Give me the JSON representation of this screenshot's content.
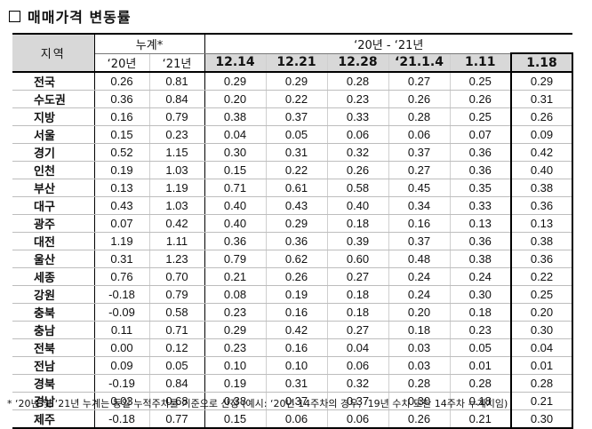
{
  "title": "매매가격 변동률",
  "header": {
    "region": "지역",
    "cumulative_group": "누계*",
    "period_group": "‘20년 - ‘21년",
    "cumulative_cols": [
      "‘20년",
      "‘21년"
    ],
    "week_cols": [
      "12.14",
      "12.21",
      "12.28",
      "‘21.1.4",
      "1.11",
      "1.18"
    ]
  },
  "rows": [
    {
      "region": "전국",
      "c20": "0.26",
      "c21": "0.81",
      "w": [
        "0.29",
        "0.29",
        "0.28",
        "0.27",
        "0.25",
        "0.29"
      ]
    },
    {
      "region": "수도권",
      "c20": "0.36",
      "c21": "0.84",
      "w": [
        "0.20",
        "0.22",
        "0.23",
        "0.26",
        "0.26",
        "0.31"
      ]
    },
    {
      "region": "지방",
      "c20": "0.16",
      "c21": "0.79",
      "w": [
        "0.38",
        "0.37",
        "0.33",
        "0.28",
        "0.25",
        "0.26"
      ]
    },
    {
      "region": "서울",
      "c20": "0.15",
      "c21": "0.23",
      "w": [
        "0.04",
        "0.05",
        "0.06",
        "0.06",
        "0.07",
        "0.09"
      ]
    },
    {
      "region": "경기",
      "c20": "0.52",
      "c21": "1.15",
      "w": [
        "0.30",
        "0.31",
        "0.32",
        "0.37",
        "0.36",
        "0.42"
      ]
    },
    {
      "region": "인천",
      "c20": "0.19",
      "c21": "1.03",
      "w": [
        "0.15",
        "0.22",
        "0.26",
        "0.27",
        "0.36",
        "0.40"
      ]
    },
    {
      "region": "부산",
      "c20": "0.13",
      "c21": "1.19",
      "w": [
        "0.71",
        "0.61",
        "0.58",
        "0.45",
        "0.35",
        "0.38"
      ]
    },
    {
      "region": "대구",
      "c20": "0.43",
      "c21": "1.03",
      "w": [
        "0.40",
        "0.43",
        "0.40",
        "0.34",
        "0.33",
        "0.36"
      ]
    },
    {
      "region": "광주",
      "c20": "0.07",
      "c21": "0.42",
      "w": [
        "0.40",
        "0.29",
        "0.18",
        "0.16",
        "0.13",
        "0.13"
      ]
    },
    {
      "region": "대전",
      "c20": "1.19",
      "c21": "1.11",
      "w": [
        "0.36",
        "0.36",
        "0.39",
        "0.37",
        "0.36",
        "0.38"
      ]
    },
    {
      "region": "울산",
      "c20": "0.31",
      "c21": "1.23",
      "w": [
        "0.79",
        "0.62",
        "0.60",
        "0.48",
        "0.38",
        "0.36"
      ]
    },
    {
      "region": "세종",
      "c20": "0.76",
      "c21": "0.70",
      "w": [
        "0.21",
        "0.26",
        "0.27",
        "0.24",
        "0.24",
        "0.22"
      ]
    },
    {
      "region": "강원",
      "c20": "-0.18",
      "c21": "0.79",
      "w": [
        "0.08",
        "0.19",
        "0.18",
        "0.24",
        "0.30",
        "0.25"
      ]
    },
    {
      "region": "충북",
      "c20": "-0.09",
      "c21": "0.58",
      "w": [
        "0.23",
        "0.16",
        "0.18",
        "0.20",
        "0.18",
        "0.20"
      ]
    },
    {
      "region": "충남",
      "c20": "0.11",
      "c21": "0.71",
      "w": [
        "0.29",
        "0.42",
        "0.27",
        "0.18",
        "0.23",
        "0.30"
      ]
    },
    {
      "region": "전북",
      "c20": "0.00",
      "c21": "0.12",
      "w": [
        "0.23",
        "0.16",
        "0.04",
        "0.03",
        "0.05",
        "0.04"
      ]
    },
    {
      "region": "전남",
      "c20": "0.09",
      "c21": "0.05",
      "w": [
        "0.10",
        "0.10",
        "0.06",
        "0.03",
        "0.01",
        "0.01"
      ]
    },
    {
      "region": "경북",
      "c20": "-0.19",
      "c21": "0.84",
      "w": [
        "0.19",
        "0.31",
        "0.32",
        "0.28",
        "0.28",
        "0.28"
      ]
    },
    {
      "region": "경남",
      "c20": "0.03",
      "c21": "0.68",
      "w": [
        "0.38",
        "0.37",
        "0.37",
        "0.30",
        "0.18",
        "0.21"
      ]
    },
    {
      "region": "제주",
      "c20": "-0.18",
      "c21": "0.77",
      "w": [
        "0.15",
        "0.06",
        "0.06",
        "0.26",
        "0.21",
        "0.30"
      ]
    }
  ],
  "footnote": "* ‘20년 및 ‘21년 누계는 동일 누적주차를 기준으로 산정 (예시: ‘20년 14주차의 경우, ‘19년 수치 또한 14주차 누계치임)"
}
